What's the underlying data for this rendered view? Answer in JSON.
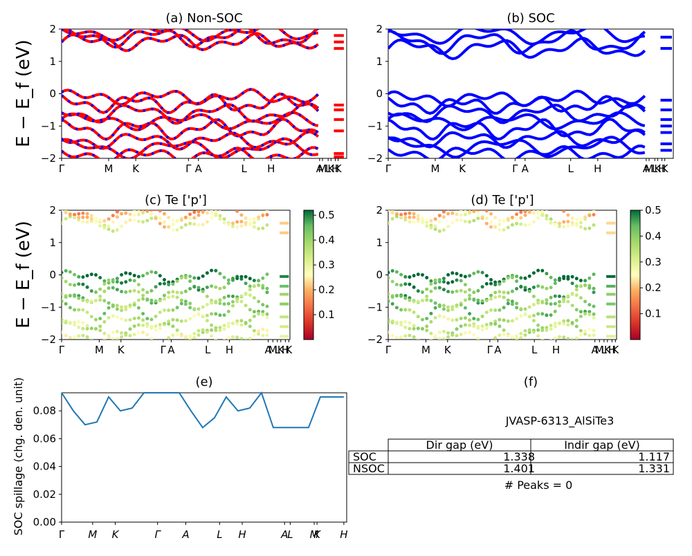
{
  "figure": {
    "band_ylabel": "E − E_f (eV)",
    "panels": {
      "a": {
        "title": "(a) Non-SOC"
      },
      "b": {
        "title": "(b) SOC"
      },
      "c": {
        "title": "(c)  Te ['p']"
      },
      "d": {
        "title": "(d) Te ['p']"
      },
      "e": {
        "title": "(e)",
        "ylabel": "SOC spillage (chg. den. unit)"
      },
      "f": {
        "title": "(f)"
      }
    },
    "kpath_labels": [
      "Γ",
      "M",
      "K",
      "Γ",
      "A",
      "L",
      "H",
      "A",
      "M",
      "L",
      "K",
      "H",
      "K"
    ],
    "spillage_xlabels": [
      "Γ",
      "M",
      "K",
      "Γ",
      "A",
      "L",
      "H",
      "A",
      "L",
      "M",
      "K",
      "H"
    ],
    "colorbar_c": {
      "ticks": [
        "0.1",
        "0.2",
        "0.3",
        "0.4",
        "0.5"
      ],
      "min": 0.0,
      "max": 0.52
    },
    "colorbar_d": {
      "ticks": [
        "0.1",
        "0.2",
        "0.3",
        "0.4",
        "0.5"
      ],
      "min": 0.0,
      "max": 0.5
    },
    "colors": {
      "non_soc_a": "#ff0000",
      "non_soc_b": "#0000ff",
      "soc": "#0000ff",
      "spillage": "#1f77b4"
    }
  },
  "table": {
    "material": "JVASP-6313_AlSiTe3",
    "headers": [
      "Dir gap (eV)",
      "Indir gap (eV)"
    ],
    "rows": [
      {
        "label": "SOC",
        "dir": "1.338",
        "indir": "1.117"
      },
      {
        "label": "NSOC",
        "dir": "1.401",
        "indir": "1.331"
      }
    ],
    "peaks": "# Peaks = 0"
  },
  "chart_data": [
    {
      "type": "line",
      "title": "(a) Non-SOC",
      "ylabel": "E − E_f (eV)",
      "ylim": [
        -2,
        2
      ],
      "yticks": [
        -2,
        -1,
        0,
        1,
        2
      ],
      "x_labels": [
        "Γ",
        "M",
        "K",
        "Γ",
        "A",
        "L",
        "H",
        "A",
        "M",
        "L",
        "K",
        "H",
        "K"
      ],
      "bands_at_gamma": [
        1.55,
        0.0,
        -0.1,
        -0.85,
        -1.45
      ]
    },
    {
      "type": "line",
      "title": "(b) SOC",
      "ylabel": "",
      "ylim": [
        -2,
        2
      ],
      "yticks": [
        -2,
        -1,
        0,
        1,
        2
      ],
      "x_labels": [
        "Γ",
        "M",
        "K",
        "Γ",
        "A",
        "L",
        "H",
        "A",
        "M",
        "L",
        "K",
        "H",
        "K"
      ],
      "bands_at_gamma": [
        1.35,
        0.0,
        -0.2,
        -0.6,
        -1.1,
        -1.8
      ]
    },
    {
      "type": "scatter",
      "title": "(c)  Te ['p']",
      "ylabel": "E − E_f (eV)",
      "ylim": [
        -2,
        2
      ],
      "colorbar": [
        0.0,
        0.52
      ]
    },
    {
      "type": "scatter",
      "title": "(d) Te ['p']",
      "ylabel": "",
      "ylim": [
        -2,
        2
      ],
      "colorbar": [
        0.0,
        0.5
      ]
    },
    {
      "type": "line",
      "title": "(e)",
      "ylabel": "SOC spillage (chg. den. unit)",
      "ylim": [
        0.0,
        0.093
      ],
      "yticks": [
        "0.00",
        "0.02",
        "0.04",
        "0.06",
        "0.08"
      ],
      "x_labels": [
        "Γ",
        "M",
        "K",
        "Γ",
        "A",
        "L",
        "H",
        "A",
        "L",
        "M",
        "K",
        "H"
      ],
      "x": [
        0,
        0.5,
        1,
        1.5,
        2,
        2.5,
        3,
        3.5,
        4,
        4.5,
        5,
        5.5,
        6,
        6.5,
        7,
        7.5,
        8,
        8.5,
        9,
        9.5,
        10,
        10.5,
        11,
        11.5,
        12
      ],
      "values": [
        0.093,
        0.08,
        0.07,
        0.072,
        0.09,
        0.08,
        0.082,
        0.093,
        0.093,
        0.093,
        0.093,
        0.08,
        0.068,
        0.075,
        0.09,
        0.08,
        0.082,
        0.093,
        0.068,
        0.068,
        0.068,
        0.068,
        0.09,
        0.09,
        0.09
      ]
    }
  ]
}
